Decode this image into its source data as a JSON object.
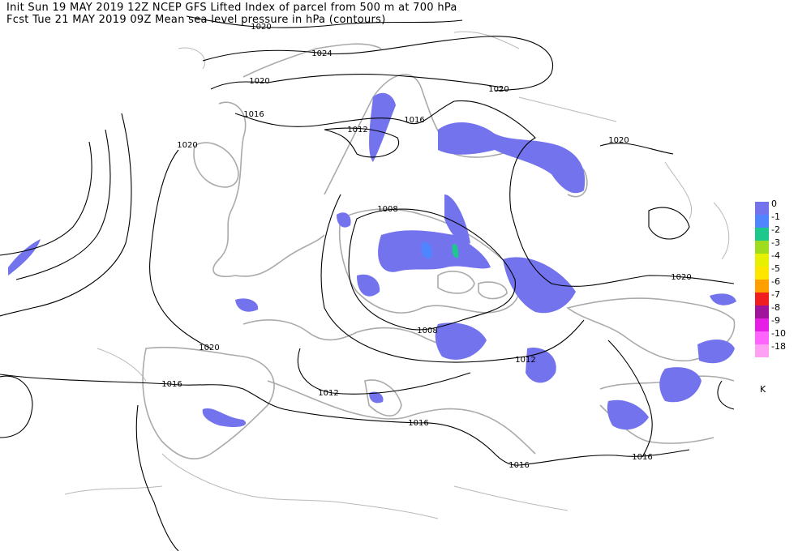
{
  "header": {
    "line1": "Init  Sun 19 MAY 2019 12Z   NCEP GFS Lifted Index of parcel from 500 m at 700 hPa",
    "line2": "Fcst Tue 21 MAY 2019 09Z   Mean sea level pressure in hPa (contours)"
  },
  "contour_labels": [
    "1020",
    "1024",
    "1020",
    "1020",
    "1016",
    "1012",
    "1016",
    "1020",
    "1020",
    "1008",
    "1020",
    "1008",
    "1012",
    "1020",
    "1016",
    "1012",
    "1016",
    "1016",
    "1016"
  ],
  "legend": {
    "items": [
      {
        "label": "0",
        "color": "#7373ee"
      },
      {
        "label": "-1",
        "color": "#4f86ff"
      },
      {
        "label": "-2",
        "color": "#1ec88c"
      },
      {
        "label": "-3",
        "color": "#a0dc1e"
      },
      {
        "label": "-4",
        "color": "#e6f000"
      },
      {
        "label": "-5",
        "color": "#ffe600"
      },
      {
        "label": "-6",
        "color": "#ffa000"
      },
      {
        "label": "-7",
        "color": "#f01e1e"
      },
      {
        "label": "-8",
        "color": "#a0149b"
      },
      {
        "label": "-9",
        "color": "#e61ee6"
      },
      {
        "label": "-10",
        "color": "#ff64ff"
      },
      {
        "label": "-18",
        "color": "#ffa0f5"
      }
    ],
    "unit": "K"
  }
}
